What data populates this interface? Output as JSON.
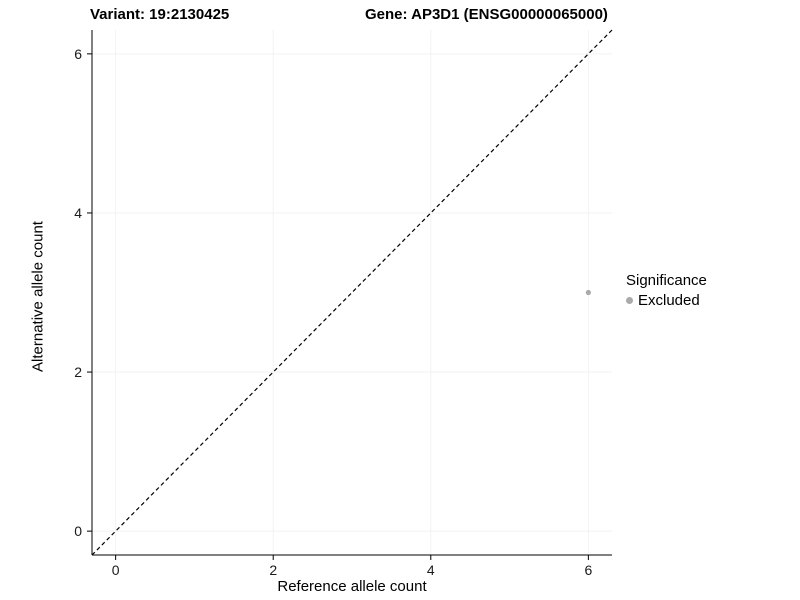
{
  "title": {
    "variant_label": "Variant: 19:2130425",
    "gene_label": "Gene: AP3D1 (ENSG00000065000)"
  },
  "legend": {
    "title": "Significance",
    "items": [
      {
        "label": "Excluded",
        "color": "#aaaaaa"
      }
    ]
  },
  "chart_data": {
    "type": "scatter",
    "title": "Variant: 19:2130425  Gene: AP3D1 (ENSG00000065000)",
    "xlabel": "Reference allele count",
    "ylabel": "Alternative allele count",
    "xlim": [
      -0.3,
      6.3
    ],
    "ylim": [
      -0.3,
      6.3
    ],
    "xticks": [
      0,
      2,
      4,
      6
    ],
    "yticks": [
      0,
      2,
      4,
      6
    ],
    "grid": true,
    "grid_color": "#f2f2f2",
    "identity_line": {
      "style": "dashed",
      "from": [
        -0.3,
        -0.3
      ],
      "to": [
        6.3,
        6.3
      ],
      "color": "#000000"
    },
    "series": [
      {
        "name": "Excluded",
        "color": "#aaaaaa",
        "points": [
          {
            "x": 6,
            "y": 3
          }
        ]
      }
    ],
    "legend": {
      "title": "Significance",
      "position": "right",
      "items": [
        {
          "label": "Excluded",
          "color": "#aaaaaa"
        }
      ]
    }
  }
}
